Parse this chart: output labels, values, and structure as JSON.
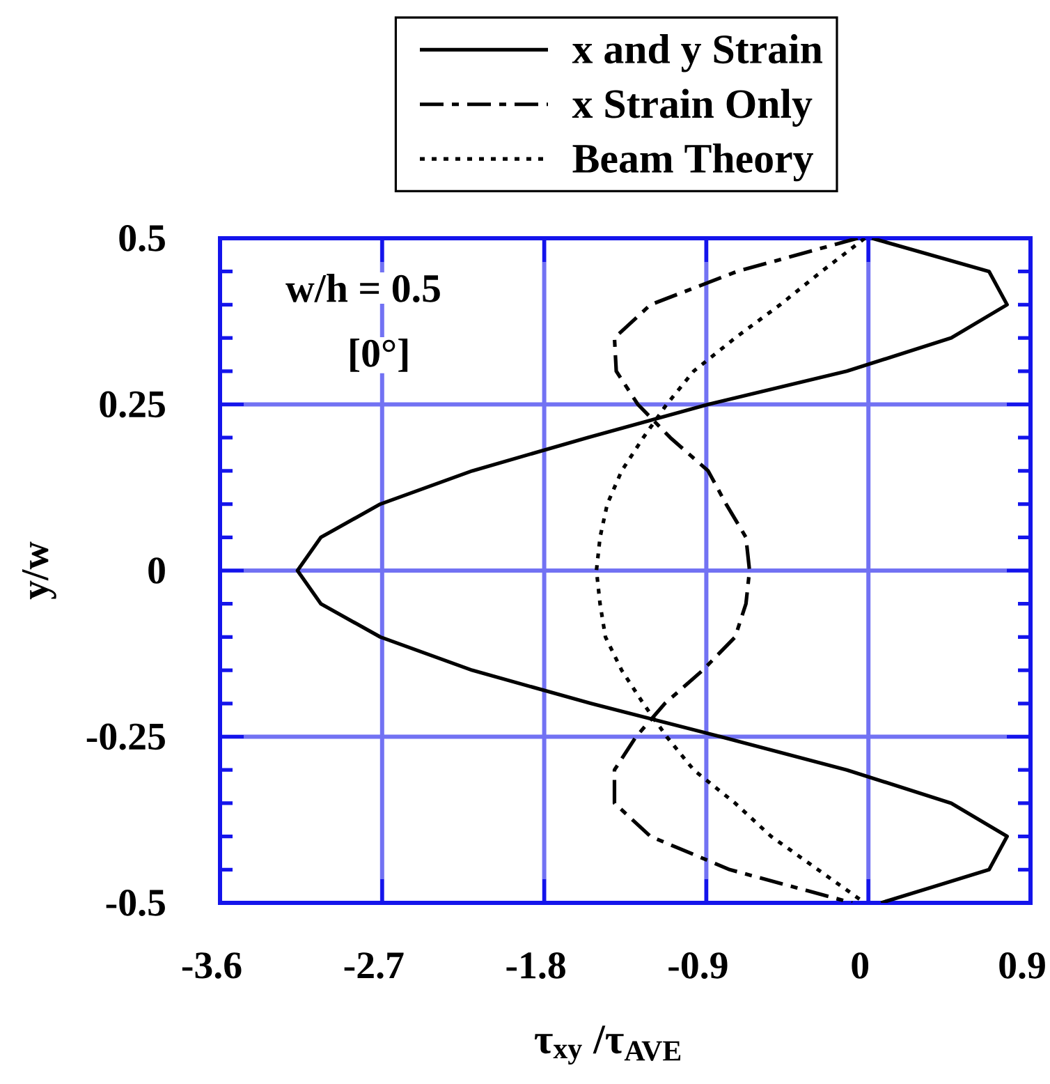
{
  "chart_data": {
    "type": "line",
    "xlabel": "τ$_{xy}$ /τ$_{AVE}$",
    "ylabel": "y/w",
    "annotations": [
      "w/h = 0.5",
      "[0°]"
    ],
    "xlim": [
      -3.6,
      0.9
    ],
    "xticks": [
      -3.6,
      -2.7,
      -1.8,
      -0.9,
      0,
      0.9
    ],
    "ylim": [
      -0.5,
      0.5
    ],
    "yticks": [
      -0.5,
      -0.25,
      0,
      0.25,
      0.5
    ],
    "grid": true,
    "legend": "top",
    "series": [
      {
        "name": "x and y Strain",
        "color": "#000000",
        "line_style": "solid",
        "x": [
          0.02,
          0.67,
          0.77,
          0.46,
          -0.12,
          -0.89,
          -1.56,
          -2.2,
          -2.71,
          -3.04,
          -3.17,
          -3.04,
          -2.71,
          -2.2,
          -1.54,
          -0.82,
          -0.12,
          0.46,
          0.77,
          0.67,
          0.07
        ],
        "values": [
          0.5,
          0.45,
          0.4,
          0.35,
          0.3,
          0.25,
          0.2,
          0.15,
          0.1,
          0.05,
          0,
          -0.05,
          -0.1,
          -0.15,
          -0.2,
          -0.25,
          -0.3,
          -0.35,
          -0.4,
          -0.45,
          -0.5
        ]
      },
      {
        "name": "x Strain Only",
        "color": "#000000",
        "line_style": "dashed",
        "x": [
          -0.06,
          -0.73,
          -1.21,
          -1.41,
          -1.4,
          -1.28,
          -1.1,
          -0.89,
          -0.79,
          -0.68,
          -0.66,
          -0.68,
          -0.74,
          -0.92,
          -1.13,
          -1.29,
          -1.41,
          -1.41,
          -1.21,
          -0.77,
          -0.09
        ],
        "values": [
          0.5,
          0.45,
          0.4,
          0.35,
          0.3,
          0.25,
          0.2,
          0.15,
          0.1,
          0.05,
          0,
          -0.05,
          -0.1,
          -0.15,
          -0.2,
          -0.25,
          -0.3,
          -0.35,
          -0.4,
          -0.45,
          -0.5
        ]
      },
      {
        "name": "Beam Theory",
        "color": "#000000",
        "line_style": "dotted",
        "x": [
          -0.02,
          -0.26,
          -0.49,
          -0.74,
          -0.97,
          -1.12,
          -1.25,
          -1.37,
          -1.45,
          -1.49,
          -1.51,
          -1.49,
          -1.46,
          -1.37,
          -1.25,
          -1.12,
          -0.97,
          -0.74,
          -0.54,
          -0.28,
          -0.02
        ],
        "values": [
          0.5,
          0.45,
          0.4,
          0.35,
          0.3,
          0.25,
          0.2,
          0.15,
          0.1,
          0.05,
          0,
          -0.05,
          -0.1,
          -0.15,
          -0.2,
          -0.25,
          -0.3,
          -0.35,
          -0.4,
          -0.45,
          -0.5
        ]
      }
    ]
  }
}
